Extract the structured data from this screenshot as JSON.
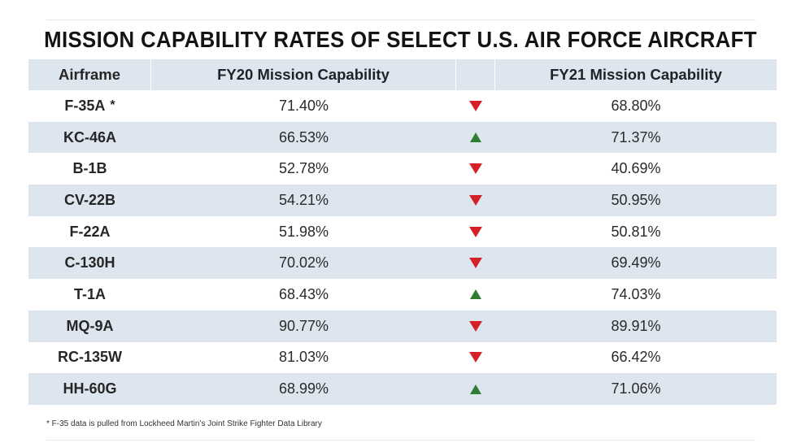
{
  "chart_data": {
    "type": "table",
    "title": "MISSION CAPABILITY RATES OF SELECT U.S. AIR FORCE AIRCRAFT",
    "columns": [
      "Airframe",
      "FY20 Mission Capability",
      "",
      "FY21 Mission Capability"
    ],
    "rows": [
      {
        "airframe": "F-35A",
        "star": "*",
        "fy20": "71.40%",
        "trend": "down",
        "fy21": "68.80%"
      },
      {
        "airframe": "KC-46A",
        "star": "",
        "fy20": "66.53%",
        "trend": "up",
        "fy21": "71.37%"
      },
      {
        "airframe": "B-1B",
        "star": "",
        "fy20": "52.78%",
        "trend": "down",
        "fy21": "40.69%"
      },
      {
        "airframe": "CV-22B",
        "star": "",
        "fy20": "54.21%",
        "trend": "down",
        "fy21": "50.95%"
      },
      {
        "airframe": "F-22A",
        "star": "",
        "fy20": "51.98%",
        "trend": "down",
        "fy21": "50.81%"
      },
      {
        "airframe": "C-130H",
        "star": "",
        "fy20": "70.02%",
        "trend": "down",
        "fy21": "69.49%"
      },
      {
        "airframe": "T-1A",
        "star": "",
        "fy20": "68.43%",
        "trend": "up",
        "fy21": "74.03%"
      },
      {
        "airframe": "MQ-9A",
        "star": "",
        "fy20": "90.77%",
        "trend": "down",
        "fy21": "89.91%"
      },
      {
        "airframe": "RC-135W",
        "star": "",
        "fy20": "81.03%",
        "trend": "down",
        "fy21": "66.42%"
      },
      {
        "airframe": "HH-60G",
        "star": "",
        "fy20": "68.99%",
        "trend": "up",
        "fy21": "71.06%"
      }
    ],
    "footnote": "* F-35 data is pulled from Lockheed Martin’s Joint Strike Fighter Data Library"
  },
  "colors": {
    "down_arrow": "#d62027",
    "up_arrow": "#2e7d32",
    "header_bg": "#dde6ef",
    "stripe_bg": "#dde6ef"
  }
}
